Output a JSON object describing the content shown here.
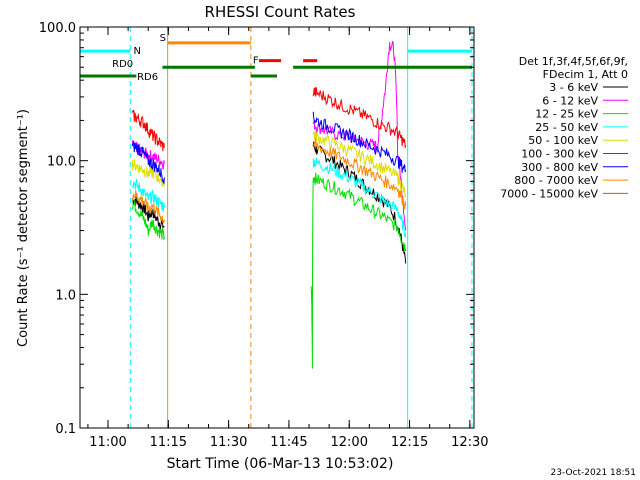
{
  "chart_data": {
    "type": "line",
    "title": "RHESSI Count Rates",
    "xlabel": "Start Time (06-Mar-13 10:53:02)",
    "ylabel": "Count Rate (s⁻¹ detector segment⁻¹)",
    "yscale": "log",
    "ylim": [
      0.1,
      100.0
    ],
    "xlim_minutes": [
      0,
      98
    ],
    "x_tick_labels": [
      "11:00",
      "11:15",
      "11:30",
      "11:45",
      "12:00",
      "12:15",
      "12:30"
    ],
    "x_tick_minutes": [
      6.97,
      21.97,
      36.97,
      51.97,
      66.97,
      81.97,
      96.97
    ],
    "y_tick_labels": [
      "0.1",
      "1.0",
      "10.0",
      "100.0"
    ],
    "y_tick_values": [
      0.1,
      1.0,
      10.0,
      100.0
    ],
    "legend_header": [
      "Det 1f,3f,4f,5f,6f,9f,",
      "FDecim 1, Att 0"
    ],
    "legend_placement": "right",
    "timestamp": "23-Oct-2021 18:51",
    "series": [
      {
        "name": "3 - 6 keV",
        "color": "#000000",
        "segments": [
          {
            "x": [
              13,
              14,
              15,
              16,
              17,
              18,
              19,
              20,
              21
            ],
            "y": [
              5.2,
              5.0,
              4.7,
              4.4,
              3.8,
              4.2,
              3.7,
              3.4,
              3.2
            ]
          },
          {
            "x": [
              58,
              59,
              61,
              63,
              65,
              67,
              69,
              71,
              73,
              75,
              77,
              79,
              80,
              81
            ],
            "y": [
              13,
              12,
              11,
              10,
              9,
              8.2,
              7.2,
              6.5,
              5.8,
              5.2,
              4.5,
              3.4,
              2.5,
              1.7
            ]
          }
        ]
      },
      {
        "name": "6 - 12 keV",
        "color": "#ff00ff",
        "segments": [
          {
            "x": [
              13,
              14,
              15,
              16,
              17,
              18,
              19,
              20,
              21
            ],
            "y": [
              13,
              12.5,
              12,
              11.5,
              11,
              10.8,
              10.4,
              10,
              9.5
            ]
          },
          {
            "x": [
              58,
              59,
              61,
              63,
              65,
              67,
              69,
              71,
              73,
              74,
              75,
              76,
              77,
              78,
              79,
              80,
              81
            ],
            "y": [
              19,
              18,
              17,
              16,
              15.5,
              15,
              14.3,
              13.5,
              13,
              12.8,
              20,
              35,
              75,
              70,
              12,
              6,
              3
            ]
          }
        ]
      },
      {
        "name": "12 - 25 keV",
        "color": "#00dd00",
        "segments": [
          {
            "x": [
              13,
              14,
              15,
              16,
              17,
              18,
              19,
              20,
              21
            ],
            "y": [
              4.8,
              4.5,
              4.0,
              3.6,
              3.0,
              3.5,
              3.1,
              2.9,
              2.7
            ]
          },
          {
            "x": [
              57.5,
              57.8,
              58,
              59,
              61,
              63,
              65,
              67,
              69,
              71,
              73,
              75,
              77,
              79,
              80,
              81
            ],
            "y": [
              1.2,
              0.3,
              7.6,
              7.2,
              6.8,
              6.4,
              6.0,
              5.5,
              5.0,
              4.6,
              4.2,
              3.9,
              3.5,
              3.2,
              2.6,
              2.2
            ]
          }
        ]
      },
      {
        "name": "25 - 50 keV",
        "color": "#00ffff",
        "segments": [
          {
            "x": [
              13,
              14,
              15,
              16,
              17,
              18,
              19,
              20,
              21
            ],
            "y": [
              7.0,
              6.6,
              6.2,
              5.7,
              5.2,
              5.4,
              5.1,
              4.8,
              4.5
            ]
          },
          {
            "x": [
              58,
              59,
              61,
              63,
              65,
              67,
              69,
              71,
              73,
              75,
              77,
              79,
              80,
              81
            ],
            "y": [
              10,
              9.6,
              9.1,
              8.6,
              8.0,
              7.4,
              6.8,
              6.2,
              5.7,
              5.2,
              4.7,
              4.3,
              3.5,
              2.9
            ]
          }
        ]
      },
      {
        "name": "50 - 100 keV",
        "color": "#dddd00",
        "segments": [
          {
            "x": [
              13,
              14,
              15,
              16,
              17,
              18,
              19,
              20,
              21
            ],
            "y": [
              9.5,
              9.2,
              8.8,
              8.5,
              8.0,
              8.2,
              7.7,
              7.3,
              6.9
            ]
          },
          {
            "x": [
              58,
              59,
              61,
              63,
              65,
              67,
              69,
              71,
              73,
              75,
              77,
              79,
              80,
              81
            ],
            "y": [
              16,
              15,
              14.2,
              13.5,
              12.7,
              12,
              11.2,
              10.5,
              9.8,
              9.0,
              8.3,
              7.6,
              6.5,
              5.5
            ]
          }
        ]
      },
      {
        "name": "100 - 300 keV",
        "color": "#ff0000",
        "segments": [
          {
            "x": [
              13,
              14,
              15,
              16,
              17,
              18,
              19,
              20,
              21
            ],
            "y": [
              22,
              21,
              20,
              19,
              17,
              15.5,
              14.5,
              13.5,
              12.5
            ]
          },
          {
            "x": [
              58,
              59,
              61,
              63,
              65,
              67,
              69,
              71,
              73,
              75,
              77,
              79,
              80,
              81
            ],
            "y": [
              33,
              32,
              30,
              28,
              26,
              24.5,
              23,
              21.5,
              20,
              18.5,
              17.5,
              16,
              14.5,
              13
            ]
          }
        ]
      },
      {
        "name": "300 - 800 keV",
        "color": "#0000ff",
        "segments": [
          {
            "x": [
              13,
              14,
              15,
              16,
              17,
              18,
              19,
              20,
              21
            ],
            "y": [
              13,
              12.5,
              12,
              11,
              10,
              9.5,
              9.0,
              8.2,
              7.5
            ]
          },
          {
            "x": [
              58,
              59,
              61,
              63,
              65,
              67,
              69,
              71,
              73,
              75,
              77,
              79,
              80,
              81
            ],
            "y": [
              21,
              20,
              18.5,
              17.5,
              16.5,
              15.5,
              14.5,
              13.5,
              12.5,
              11.7,
              10.9,
              10,
              9.2,
              8.5
            ]
          }
        ]
      },
      {
        "name": "800 - 7000 keV",
        "color": "#ff8800",
        "segments": [
          {
            "x": [
              13,
              14,
              15,
              16,
              17,
              18,
              19,
              20,
              21
            ],
            "y": [
              5.7,
              5.5,
              5.2,
              4.9,
              4.4,
              4.6,
              4.2,
              3.9,
              3.6
            ]
          },
          {
            "x": [
              58,
              59,
              61,
              63,
              65,
              67,
              69,
              71,
              73,
              75,
              77,
              79,
              80,
              81
            ],
            "y": [
              13.5,
              12.8,
              12,
              11.3,
              10.6,
              9.9,
              9.2,
              8.5,
              7.9,
              7.3,
              6.7,
              6.2,
              5.4,
              4.6
            ]
          }
        ]
      },
      {
        "name": "7000 - 15000 keV",
        "color": "#808000",
        "segments": []
      }
    ],
    "annotations": [
      {
        "label": "N",
        "color": "#00ffff",
        "bars": [
          [
            0,
            12.5
          ],
          [
            81.5,
            97.5
          ]
        ],
        "y": 66
      },
      {
        "label": "S",
        "color": "#ff8800",
        "bars": [
          [
            21.8,
            42.5
          ]
        ],
        "y": 76
      },
      {
        "label": "F",
        "color": "#ff0000",
        "bars": [
          [
            44.5,
            50
          ],
          [
            55.5,
            59
          ]
        ],
        "y": 56
      },
      {
        "label": "RD0",
        "color": "#007700",
        "bars": [
          [
            20.5,
            43.5
          ],
          [
            53,
            97.5
          ]
        ],
        "y": 50
      },
      {
        "label": "RD6",
        "color": "#007700",
        "bars": [
          [
            0,
            14
          ],
          [
            42.5,
            49
          ]
        ],
        "y": 43
      }
    ],
    "vertical_lines": [
      {
        "x": 0,
        "color": "#00ffff",
        "style": "solid"
      },
      {
        "x": 12.5,
        "color": "#00ffff",
        "style": "dashed"
      },
      {
        "x": 21.8,
        "color": "#ff8800",
        "style": "solid"
      },
      {
        "x": 42.5,
        "color": "#ff8800",
        "style": "dashed"
      },
      {
        "x": 81.5,
        "color": "#00ffff",
        "style": "solid"
      },
      {
        "x": 97.5,
        "color": "#00ffff",
        "style": "dashed"
      }
    ]
  }
}
